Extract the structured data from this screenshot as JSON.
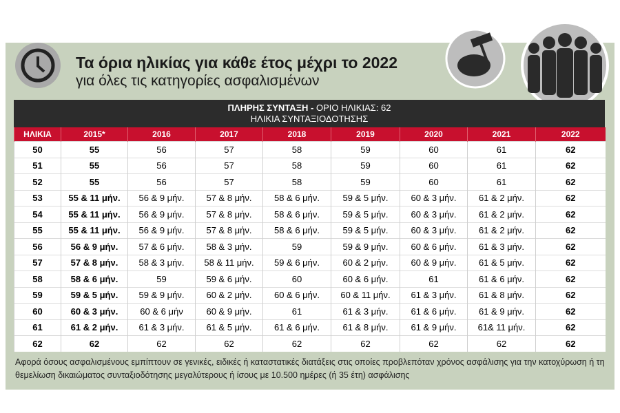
{
  "header": {
    "title": "Τα όρια ηλικίας για κάθε έτος μέχρι το 2022",
    "subtitle": "για όλες τις κατηγορίες ασφαλισμένων"
  },
  "table": {
    "banner_bold": "ΠΛΗΡΗΣ ΣΥΝΤΑΞΗ -",
    "banner_rest": "ΟΡΙΟ ΗΛΙΚΙΑΣ: 62",
    "banner_sub": "ΗΛΙΚΙΑ ΣΥΝΤΑΞΙΟΔΟΤΗΣΗΣ",
    "columns": [
      "ΗΛΙΚΙΑ",
      "2015*",
      "2016",
      "2017",
      "2018",
      "2019",
      "2020",
      "2021",
      "2022"
    ],
    "rows": [
      [
        "50",
        "55",
        "56",
        "57",
        "58",
        "59",
        "60",
        "61",
        "62"
      ],
      [
        "51",
        "55",
        "56",
        "57",
        "58",
        "59",
        "60",
        "61",
        "62"
      ],
      [
        "52",
        "55",
        "56",
        "57",
        "58",
        "59",
        "60",
        "61",
        "62"
      ],
      [
        "53",
        "55 & 11 μήν.",
        "56 & 9 μήν.",
        "57 & 8 μήν.",
        "58 & 6 μήν.",
        "59 & 5 μήν.",
        "60 & 3 μήν.",
        "61 & 2 μήν.",
        "62"
      ],
      [
        "54",
        "55 & 11 μήν.",
        "56 & 9 μήν.",
        "57 & 8 μήν.",
        "58 & 6 μήν.",
        "59 & 5 μήν.",
        "60 & 3 μήν.",
        "61 & 2 μήν.",
        "62"
      ],
      [
        "55",
        "55 & 11 μήν.",
        "56 & 9 μήν.",
        "57 & 8 μήν.",
        "58 & 6 μήν.",
        "59 & 5 μήν.",
        "60 & 3 μήν.",
        "61 & 2 μήν.",
        "62"
      ],
      [
        "56",
        "56 & 9 μήν.",
        "57 & 6 μήν.",
        "58 & 3 μήν.",
        "59",
        "59 & 9 μήν.",
        "60 & 6 μήν.",
        "61 & 3 μήν.",
        "62"
      ],
      [
        "57",
        "57 & 8 μήν.",
        "58 & 3 μήν.",
        "58 & 11 μήν.",
        "59 & 6 μήν.",
        "60 & 2 μήν.",
        "60 & 9 μήν.",
        "61 & 5 μήν.",
        "62"
      ],
      [
        "58",
        "58 & 6 μήν.",
        "59",
        "59 & 6 μήν.",
        "60",
        "60 & 6 μήν.",
        "61",
        "61 & 6 μήν.",
        "62"
      ],
      [
        "59",
        "59 & 5 μήν.",
        "59 & 9 μήν.",
        "60 & 2 μήν.",
        "60 & 6 μήν.",
        "60 & 11 μήν.",
        "61 & 3 μήν.",
        "61 & 8 μήν.",
        "62"
      ],
      [
        "60",
        "60 & 3 μήν.",
        "60 & 6 μήν",
        "60 & 9 μήν.",
        "61",
        "61 & 3 μήν.",
        "61 & 6 μήν.",
        "61 & 9 μήν.",
        "62"
      ],
      [
        "61",
        "61 & 2 μήν.",
        "61 & 3 μήν.",
        "61 & 5 μήν.",
        "61 & 6 μήν.",
        "61 & 8 μήν.",
        "61 & 9 μήν.",
        "61& 11 μήν.",
        "62"
      ],
      [
        "62",
        "62",
        "62",
        "62",
        "62",
        "62",
        "62",
        "62",
        "62"
      ]
    ]
  },
  "footnote": "Αφορά όσους ασφαλισμένους εμπίπτουν σε γενικές, ειδικές ή καταστατικές διατάξεις στις οποίες προβλεπόταν χρόνος ασφάλισης για την κατοχύρωση ή τη θεμελίωση δικαιώματος συνταξιοδότησης μεγαλύτερους ή ίσους με 10.500 ημέρες (ή 35 έτη) ασφάλισης"
}
